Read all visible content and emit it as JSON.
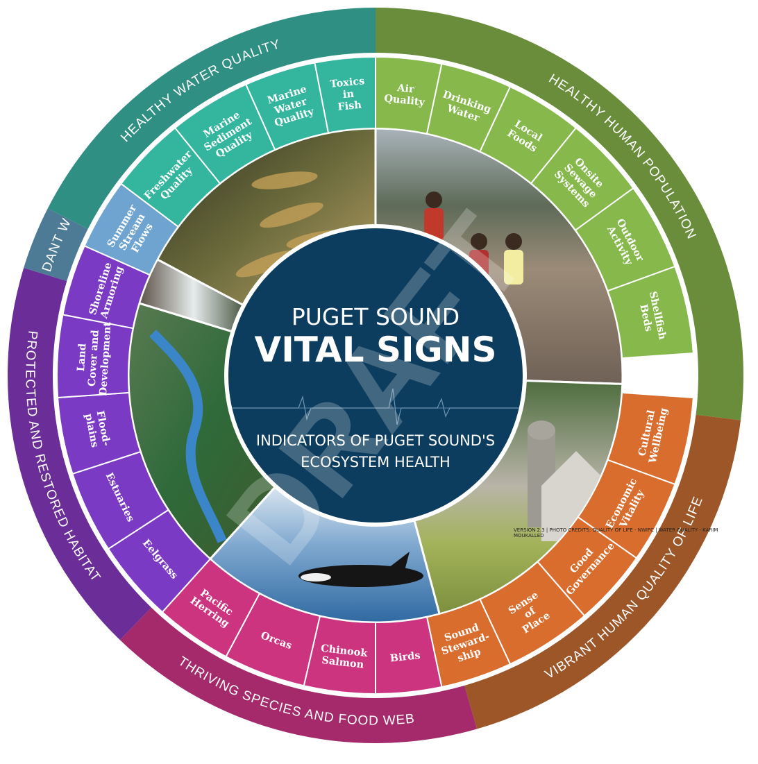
{
  "center": {
    "line1": "PUGET SOUND",
    "line2": "VITAL SIGNS",
    "line3": "INDICATORS OF PUGET SOUND'S",
    "line4": "ECOSYSTEM HEALTH",
    "fill": "#0c3c5e"
  },
  "watermark": "DRAFT",
  "credits": "VERSION 2.3 | PHOTO CREDITS: QUALITY OF LIFE - NWIFC | WATER QUALITY - KARIM MOUKALLED",
  "goals": [
    {
      "label": "HEALTHY WATER QUALITY",
      "outer_color": "#2e8f82",
      "inner_color": "#33b59e"
    },
    {
      "label": "HEALTHY HUMAN POPULATION",
      "outer_color": "#6a8d3c",
      "inner_color": "#86b84c"
    },
    {
      "label": "VIBRANT HUMAN QUALITY OF LIFE",
      "outer_color": "#9c5628",
      "inner_color": "#d86d2e"
    },
    {
      "label": "THRIVING SPECIES AND FOOD WEB",
      "outer_color": "#a52a6b",
      "inner_color": "#cc3480"
    },
    {
      "label": "PROTECTED AND RESTORED HABITAT",
      "outer_color": "#6b2d98",
      "inner_color": "#7b3ac4"
    },
    {
      "label": "ABUNDANT WATER",
      "outer_color": "#4d7b96",
      "inner_color": "#6ea4cf"
    }
  ],
  "indicators": [
    {
      "lines": [
        "Freshwater",
        "Quality"
      ],
      "goal": 0
    },
    {
      "lines": [
        "Marine",
        "Sediment",
        "Quality"
      ],
      "goal": 0
    },
    {
      "lines": [
        "Marine",
        "Water",
        "Quality"
      ],
      "goal": 0
    },
    {
      "lines": [
        "Toxics",
        "in",
        "Fish"
      ],
      "goal": 0
    },
    {
      "lines": [
        "Air",
        "Quality"
      ],
      "goal": 1
    },
    {
      "lines": [
        "Drinking",
        "Water"
      ],
      "goal": 1
    },
    {
      "lines": [
        "Local",
        "Foods"
      ],
      "goal": 1
    },
    {
      "lines": [
        "Onsite",
        "Sewage",
        "Systems"
      ],
      "goal": 1
    },
    {
      "lines": [
        "Outdoor",
        "Activity"
      ],
      "goal": 1
    },
    {
      "lines": [
        "Shellfish",
        "Beds"
      ],
      "goal": 1
    },
    {
      "lines": [
        "Cultural",
        "Wellbeing"
      ],
      "goal": 2
    },
    {
      "lines": [
        "Economic",
        "Vitality"
      ],
      "goal": 2
    },
    {
      "lines": [
        "Good",
        "Governance"
      ],
      "goal": 2
    },
    {
      "lines": [
        "Sense",
        "of",
        "Place"
      ],
      "goal": 2
    },
    {
      "lines": [
        "Sound",
        "Steward-",
        "ship"
      ],
      "goal": 2
    },
    {
      "lines": [
        "Birds"
      ],
      "goal": 3
    },
    {
      "lines": [
        "Chinook",
        "Salmon"
      ],
      "goal": 3
    },
    {
      "lines": [
        "Orcas"
      ],
      "goal": 3
    },
    {
      "lines": [
        "Pacific",
        "Herring"
      ],
      "goal": 3
    },
    {
      "lines": [
        "Eelgrass"
      ],
      "goal": 4
    },
    {
      "lines": [
        "Estuaries"
      ],
      "goal": 4
    },
    {
      "lines": [
        "Flood-",
        "plains"
      ],
      "goal": 4
    },
    {
      "lines": [
        "Land",
        "Cover and",
        "Development"
      ],
      "goal": 4
    },
    {
      "lines": [
        "Shoreline",
        "Armoring"
      ],
      "goal": 4
    },
    {
      "lines": [
        "Summer",
        "Stream",
        "Flows"
      ],
      "goal": 5
    }
  ],
  "photos": [
    {
      "subject": "juvenile salmon underwater",
      "color": "#6b6a3c"
    },
    {
      "subject": "children on tideflat",
      "color": "#7a6a5a"
    },
    {
      "subject": "farm barn and silo",
      "color": "#8aa05a"
    },
    {
      "subject": "orca surfacing",
      "color": "#4f86b8"
    },
    {
      "subject": "river valley aerial",
      "color": "#3f6e3a"
    },
    {
      "subject": "waterfall",
      "color": "#8a8f86"
    }
  ]
}
